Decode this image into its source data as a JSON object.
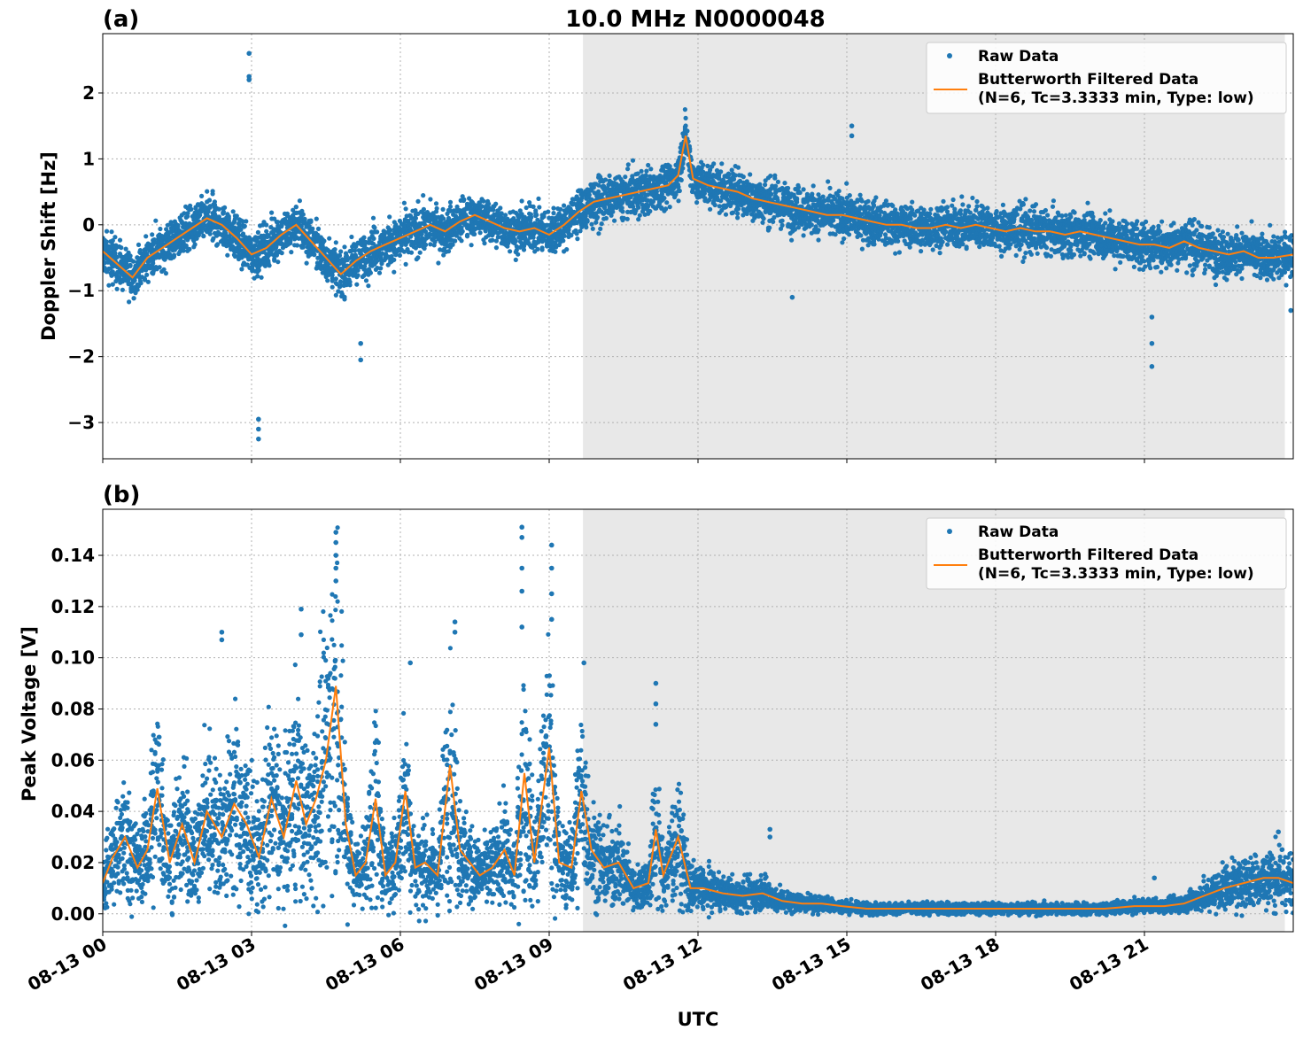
{
  "figure": {
    "title": "10.0 MHz N0000048",
    "xlabel": "UTC"
  },
  "chart_data": [
    {
      "type": "scatter",
      "panel_label": "(a)",
      "ylabel": "Doppler Shift [Hz]",
      "ylim": [
        -3.55,
        2.9
      ],
      "yticks": [
        2,
        1,
        0,
        -1,
        -2,
        -3
      ],
      "ytick_labels": [
        "2",
        "1",
        "0",
        "−1",
        "−2",
        "−3"
      ],
      "grid": true,
      "legend_position": "top-right",
      "shaded_interval_hours": [
        9.68,
        23.83
      ],
      "series": [
        {
          "name": "Raw Data",
          "color": "#1f77b4",
          "kind": "points",
          "band_spread": 0.3,
          "outliers": [
            [
              2.95,
              2.6
            ],
            [
              2.95,
              2.2
            ],
            [
              2.95,
              2.25
            ],
            [
              3.14,
              -2.95
            ],
            [
              3.14,
              -3.1
            ],
            [
              3.14,
              -3.25
            ],
            [
              5.2,
              -2.05
            ],
            [
              5.2,
              -1.8
            ],
            [
              13.9,
              -1.1
            ],
            [
              15.1,
              1.5
            ],
            [
              15.1,
              1.35
            ],
            [
              21.15,
              -1.4
            ],
            [
              21.15,
              -1.8
            ],
            [
              21.15,
              -2.15
            ],
            [
              23.95,
              -1.3
            ]
          ]
        },
        {
          "name": "Butterworth Filtered Data\n(N=6, Tc=3.3333 min, Type: low)",
          "color": "#ff7f0e",
          "kind": "line",
          "x": [
            0,
            0.3,
            0.6,
            0.9,
            1.2,
            1.5,
            1.8,
            2.1,
            2.4,
            2.7,
            3.0,
            3.3,
            3.6,
            3.9,
            4.2,
            4.5,
            4.8,
            5.1,
            5.4,
            5.7,
            6.0,
            6.3,
            6.6,
            6.9,
            7.2,
            7.5,
            7.8,
            8.1,
            8.4,
            8.7,
            9.0,
            9.3,
            9.6,
            9.9,
            10.2,
            10.5,
            10.8,
            11.1,
            11.4,
            11.6,
            11.75,
            11.9,
            12.2,
            12.5,
            12.8,
            13.1,
            13.4,
            13.7,
            14.0,
            14.3,
            14.6,
            14.9,
            15.2,
            15.5,
            15.8,
            16.1,
            16.4,
            16.7,
            17.0,
            17.3,
            17.6,
            17.9,
            18.2,
            18.5,
            18.8,
            19.1,
            19.4,
            19.7,
            20.0,
            20.3,
            20.6,
            20.9,
            21.2,
            21.5,
            21.8,
            22.1,
            22.4,
            22.7,
            23.0,
            23.3,
            23.6,
            24.0
          ],
          "y": [
            -0.4,
            -0.6,
            -0.8,
            -0.5,
            -0.35,
            -0.2,
            -0.05,
            0.1,
            0.0,
            -0.2,
            -0.45,
            -0.35,
            -0.15,
            0.0,
            -0.25,
            -0.5,
            -0.75,
            -0.55,
            -0.4,
            -0.3,
            -0.2,
            -0.1,
            0.0,
            -0.1,
            0.05,
            0.15,
            0.05,
            -0.05,
            -0.1,
            -0.05,
            -0.15,
            0.0,
            0.2,
            0.35,
            0.4,
            0.45,
            0.5,
            0.55,
            0.6,
            0.75,
            1.35,
            0.7,
            0.6,
            0.55,
            0.5,
            0.4,
            0.35,
            0.3,
            0.25,
            0.2,
            0.15,
            0.15,
            0.1,
            0.05,
            0.0,
            0.0,
            -0.05,
            -0.05,
            0.0,
            -0.05,
            0.0,
            -0.05,
            -0.1,
            -0.05,
            -0.1,
            -0.1,
            -0.15,
            -0.1,
            -0.15,
            -0.2,
            -0.25,
            -0.3,
            -0.3,
            -0.35,
            -0.25,
            -0.35,
            -0.4,
            -0.45,
            -0.4,
            -0.5,
            -0.5,
            -0.45
          ]
        }
      ]
    },
    {
      "type": "scatter",
      "panel_label": "(b)",
      "ylabel": "Peak Voltage [V]",
      "ylim": [
        -0.007,
        0.158
      ],
      "yticks": [
        0.14,
        0.12,
        0.1,
        0.08,
        0.06,
        0.04,
        0.02,
        0.0
      ],
      "ytick_labels": [
        "0.14",
        "0.12",
        "0.10",
        "0.08",
        "0.06",
        "0.04",
        "0.02",
        "0.00"
      ],
      "grid": true,
      "legend_position": "top-right",
      "shaded_interval_hours": [
        9.68,
        23.83
      ],
      "series": [
        {
          "name": "Raw Data",
          "color": "#1f77b4",
          "kind": "points",
          "band_spread": 0.75,
          "outliers": [
            [
              4.7,
              0.149
            ],
            [
              4.7,
              0.145
            ],
            [
              4.7,
              0.14
            ],
            [
              4.7,
              0.135
            ],
            [
              4.7,
              0.13
            ],
            [
              8.45,
              0.151
            ],
            [
              8.45,
              0.147
            ],
            [
              8.45,
              0.135
            ],
            [
              8.45,
              0.126
            ],
            [
              8.45,
              0.112
            ],
            [
              9.05,
              0.144
            ],
            [
              9.05,
              0.135
            ],
            [
              9.05,
              0.125
            ],
            [
              9.05,
              0.115
            ],
            [
              2.4,
              0.11
            ],
            [
              2.4,
              0.107
            ],
            [
              4.0,
              0.119
            ],
            [
              4.0,
              0.109
            ],
            [
              7.1,
              0.114
            ],
            [
              7.1,
              0.11
            ],
            [
              9.7,
              0.098
            ],
            [
              6.2,
              0.098
            ],
            [
              11.15,
              0.09
            ],
            [
              11.15,
              0.082
            ],
            [
              11.15,
              0.074
            ],
            [
              13.45,
              0.033
            ],
            [
              13.45,
              0.03
            ],
            [
              21.2,
              0.014
            ],
            [
              23.7,
              0.032
            ]
          ]
        },
        {
          "name": "Butterworth Filtered Data\n(N=6, Tc=3.3333 min, Type: low)",
          "color": "#ff7f0e",
          "kind": "line",
          "x": [
            0,
            0.2,
            0.45,
            0.7,
            0.9,
            1.1,
            1.35,
            1.6,
            1.85,
            2.1,
            2.4,
            2.65,
            2.9,
            3.15,
            3.4,
            3.65,
            3.9,
            4.1,
            4.3,
            4.5,
            4.7,
            4.9,
            5.1,
            5.3,
            5.5,
            5.7,
            5.9,
            6.1,
            6.3,
            6.5,
            6.75,
            7.0,
            7.2,
            7.4,
            7.6,
            7.85,
            8.1,
            8.3,
            8.5,
            8.7,
            9.0,
            9.2,
            9.45,
            9.65,
            9.85,
            10.1,
            10.4,
            10.7,
            11.0,
            11.15,
            11.3,
            11.6,
            11.85,
            12.1,
            12.5,
            12.9,
            13.3,
            13.7,
            14.1,
            14.5,
            14.9,
            15.4,
            16.0,
            16.6,
            17.2,
            17.8,
            18.4,
            19.0,
            19.6,
            20.2,
            20.8,
            21.4,
            21.8,
            22.2,
            22.6,
            23.0,
            23.4,
            23.7,
            24.0
          ],
          "y": [
            0.012,
            0.022,
            0.03,
            0.018,
            0.025,
            0.049,
            0.02,
            0.035,
            0.02,
            0.04,
            0.03,
            0.043,
            0.035,
            0.022,
            0.045,
            0.03,
            0.052,
            0.035,
            0.045,
            0.06,
            0.089,
            0.035,
            0.015,
            0.02,
            0.045,
            0.015,
            0.02,
            0.048,
            0.018,
            0.02,
            0.015,
            0.058,
            0.025,
            0.02,
            0.015,
            0.018,
            0.025,
            0.015,
            0.055,
            0.02,
            0.065,
            0.02,
            0.018,
            0.048,
            0.025,
            0.018,
            0.02,
            0.01,
            0.012,
            0.033,
            0.015,
            0.03,
            0.01,
            0.01,
            0.008,
            0.007,
            0.008,
            0.005,
            0.004,
            0.004,
            0.003,
            0.002,
            0.002,
            0.002,
            0.002,
            0.002,
            0.002,
            0.002,
            0.002,
            0.002,
            0.003,
            0.003,
            0.004,
            0.007,
            0.01,
            0.012,
            0.014,
            0.014,
            0.012
          ]
        }
      ]
    }
  ],
  "x_axis": {
    "range_hours": [
      0,
      24
    ],
    "tick_hours": [
      0,
      3,
      6,
      9,
      12,
      15,
      18,
      21
    ],
    "tick_labels": [
      "08-13 00",
      "08-13 03",
      "08-13 06",
      "08-13 09",
      "08-13 12",
      "08-13 15",
      "08-13 18",
      "08-13 21"
    ]
  },
  "colors": {
    "raw": "#1f77b4",
    "filtered": "#ff7f0e",
    "shade": "#e8e8e8",
    "grid": "#b0b0b0"
  }
}
